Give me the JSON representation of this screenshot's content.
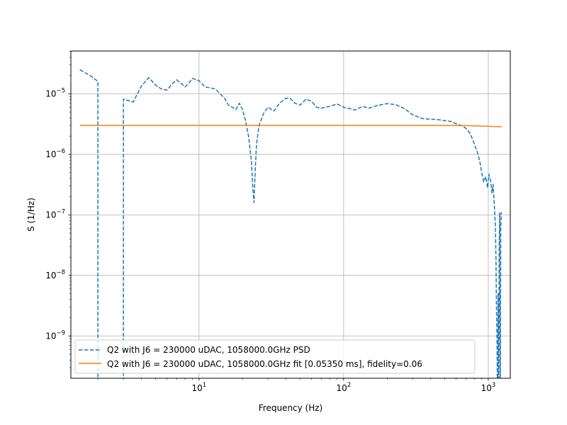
{
  "chart_data": {
    "type": "line",
    "title": "",
    "xlabel": "Frequency (Hz)",
    "ylabel": "S (1/Hz)",
    "xscale": "log",
    "yscale": "log",
    "xlim": [
      1.3,
      1420
    ],
    "ylim": [
      2e-10,
      5.1e-05
    ],
    "grid": true,
    "legend_position": "lower-left",
    "x_ticks": [
      {
        "value": 10,
        "base": "10",
        "exp": "1"
      },
      {
        "value": 100,
        "base": "10",
        "exp": "2"
      },
      {
        "value": 1000,
        "base": "10",
        "exp": "3"
      }
    ],
    "y_ticks": [
      {
        "value": 1e-09,
        "base": "10",
        "exp": "−9"
      },
      {
        "value": 1e-08,
        "base": "10",
        "exp": "−8"
      },
      {
        "value": 1e-07,
        "base": "10",
        "exp": "−7"
      },
      {
        "value": 1e-06,
        "base": "10",
        "exp": "−6"
      },
      {
        "value": 1e-05,
        "base": "10",
        "exp": "−5"
      }
    ],
    "series": [
      {
        "name": "Q2 with J6 = 230000 uDAC, 1058000.0GHz PSD",
        "color": "#1f77b4",
        "style": "dashed",
        "points": [
          [
            1.5,
            2.5e-05
          ],
          [
            1.8,
            1.95e-05
          ],
          [
            2.0,
            1.6e-05
          ],
          [
            2.0,
            1e-11
          ],
          [
            3.0,
            1e-11
          ],
          [
            3.0,
            8.2e-06
          ],
          [
            3.5,
            7.3e-06
          ],
          [
            4.0,
            1.35e-05
          ],
          [
            4.5,
            1.85e-05
          ],
          [
            5.0,
            1.4e-05
          ],
          [
            5.5,
            1.2e-05
          ],
          [
            6.0,
            1.15e-05
          ],
          [
            6.5,
            1.45e-05
          ],
          [
            7.0,
            1.7e-05
          ],
          [
            7.5,
            1.5e-05
          ],
          [
            8.0,
            1.3e-05
          ],
          [
            8.5,
            1.5e-05
          ],
          [
            9.0,
            1.8e-05
          ],
          [
            10.0,
            1.65e-05
          ],
          [
            11.0,
            1.3e-05
          ],
          [
            12.0,
            1.25e-05
          ],
          [
            13.0,
            1.2e-05
          ],
          [
            14.0,
            1e-05
          ],
          [
            15.0,
            8.5e-06
          ],
          [
            16.0,
            6.5e-06
          ],
          [
            17.0,
            6e-06
          ],
          [
            18.0,
            5.5e-06
          ],
          [
            19.0,
            7e-06
          ],
          [
            20.0,
            5.5e-06
          ],
          [
            21.0,
            3.5e-06
          ],
          [
            22.0,
            2e-06
          ],
          [
            23.0,
            8e-07
          ],
          [
            23.5,
            3e-07
          ],
          [
            24.0,
            1.6e-07
          ],
          [
            24.5,
            6e-07
          ],
          [
            25.0,
            1.5e-06
          ],
          [
            26.0,
            3e-06
          ],
          [
            28.0,
            4.8e-06
          ],
          [
            30.0,
            6e-06
          ],
          [
            33.0,
            5.2e-06
          ],
          [
            36.0,
            7e-06
          ],
          [
            40.0,
            8.5e-06
          ],
          [
            43.0,
            8.3e-06
          ],
          [
            46.0,
            7e-06
          ],
          [
            50.0,
            6.5e-06
          ],
          [
            55.0,
            8.2e-06
          ],
          [
            60.0,
            7.5e-06
          ],
          [
            65.0,
            6e-06
          ],
          [
            70.0,
            5.8e-06
          ],
          [
            80.0,
            6.2e-06
          ],
          [
            90.0,
            6.8e-06
          ],
          [
            100.0,
            6e-06
          ],
          [
            110.0,
            5.7e-06
          ],
          [
            120.0,
            5.4e-06
          ],
          [
            135.0,
            6.2e-06
          ],
          [
            150.0,
            5.8e-06
          ],
          [
            170.0,
            6.4e-06
          ],
          [
            200.0,
            6.9e-06
          ],
          [
            230.0,
            6.6e-06
          ],
          [
            260.0,
            5.8e-06
          ],
          [
            300.0,
            4.5e-06
          ],
          [
            350.0,
            3.9e-06
          ],
          [
            400.0,
            3.8e-06
          ],
          [
            450.0,
            3.75e-06
          ],
          [
            500.0,
            3.6e-06
          ],
          [
            550.0,
            3.5e-06
          ],
          [
            600.0,
            3.2e-06
          ],
          [
            650.0,
            3e-06
          ],
          [
            700.0,
            2.7e-06
          ],
          [
            750.0,
            2.2e-06
          ],
          [
            800.0,
            1.5e-06
          ],
          [
            850.0,
            1e-06
          ],
          [
            880.0,
            7e-07
          ],
          [
            900.0,
            5e-07
          ],
          [
            930.0,
            3.5e-07
          ],
          [
            960.0,
            4.3e-07
          ],
          [
            990.0,
            2.8e-07
          ],
          [
            1010.0,
            4.7e-07
          ],
          [
            1040.0,
            3.6e-07
          ],
          [
            1060.0,
            2.3e-07
          ],
          [
            1080.0,
            3.2e-07
          ],
          [
            1100.0,
            1.5e-07
          ],
          [
            1120.0,
            6.5e-08
          ],
          [
            1130.0,
            2e-08
          ],
          [
            1140.0,
            2.5e-09
          ],
          [
            1150.0,
            8e-10
          ],
          [
            1160.0,
            1e-11
          ],
          [
            1170.0,
            5e-09
          ],
          [
            1180.0,
            1e-11
          ],
          [
            1190.0,
            3e-08
          ],
          [
            1200.0,
            1.1e-07
          ],
          [
            1210.0,
            1e-11
          ],
          [
            1220.0,
            6e-08
          ],
          [
            1230.0,
            1.1e-07
          ]
        ]
      },
      {
        "name": "Q2 with J6 = 230000 uDAC, 1058000.0GHz fit [0.05350 ms], fidelity=0.06",
        "color": "#ff7f0e",
        "style": "solid",
        "points": [
          [
            1.5,
            3e-06
          ],
          [
            10.0,
            3e-06
          ],
          [
            100.0,
            3e-06
          ],
          [
            300.0,
            3e-06
          ],
          [
            500.0,
            3e-06
          ],
          [
            700.0,
            2.98e-06
          ],
          [
            900.0,
            2.93e-06
          ],
          [
            1100.0,
            2.88e-06
          ],
          [
            1240.0,
            2.85e-06
          ]
        ]
      }
    ]
  }
}
